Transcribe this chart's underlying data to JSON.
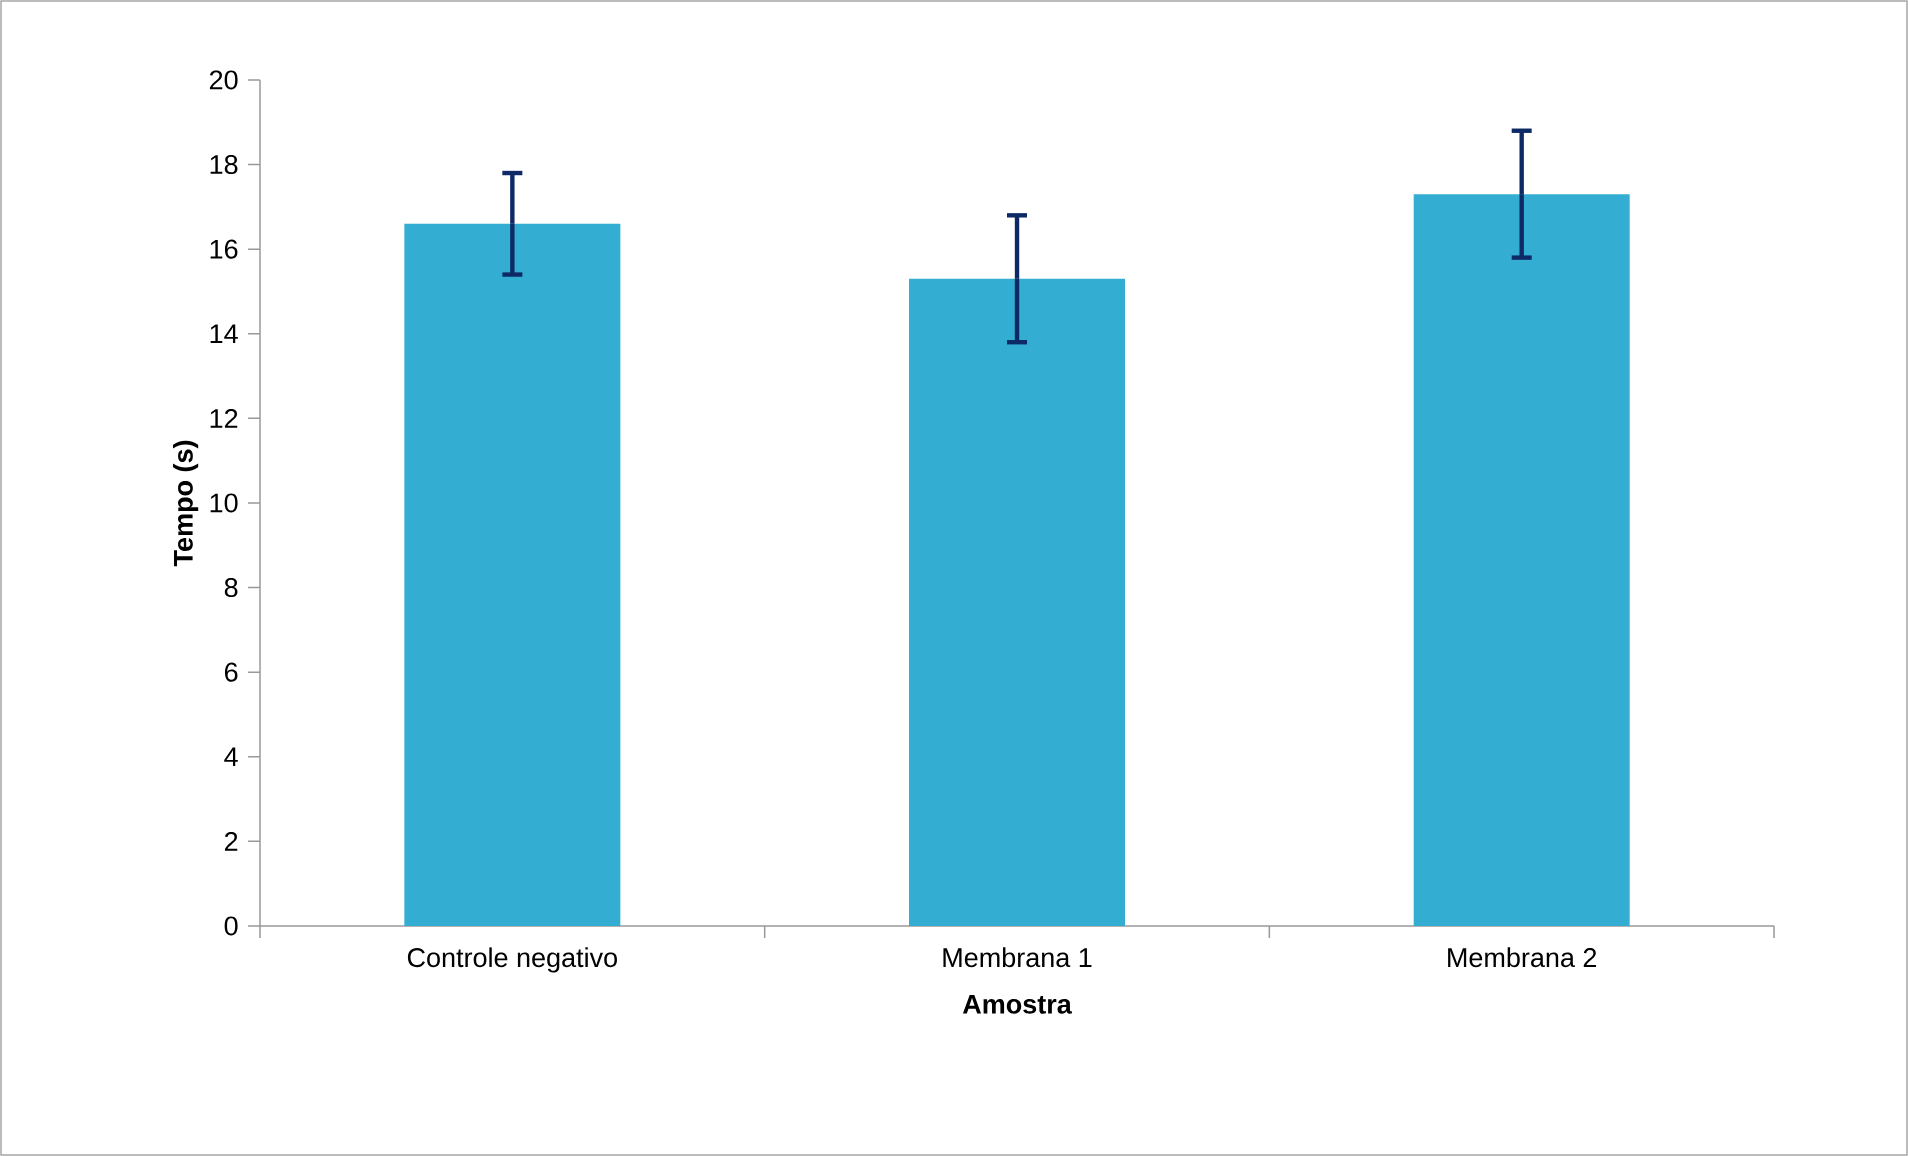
{
  "chart_data": {
    "type": "bar",
    "xlabel": "Amostra",
    "ylabel": "Tempo (s)",
    "categories": [
      "Controle negativo",
      "Membrana 1",
      "Membrana 2"
    ],
    "values": [
      16.6,
      15.3,
      17.3
    ],
    "errors": [
      1.2,
      1.5,
      1.5
    ],
    "color": "#33aed2",
    "ylim": [
      0,
      20
    ],
    "yticks": [
      0,
      2,
      4,
      6,
      8,
      10,
      12,
      14,
      16,
      18,
      20
    ],
    "grid": false
  }
}
